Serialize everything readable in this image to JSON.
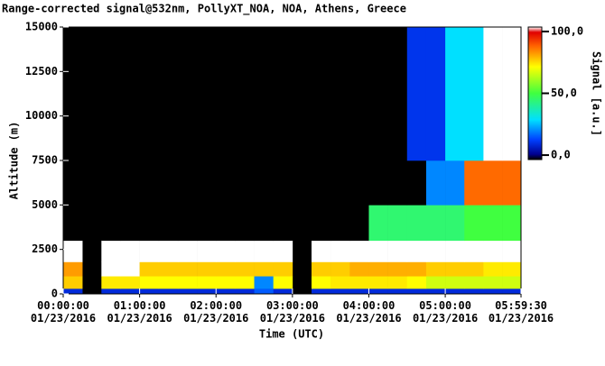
{
  "chart_data": {
    "type": "heatmap",
    "title": "Range-corrected signal@532nm, PollyXT_NOA, NOA, Athens, Greece",
    "xlabel": "Time (UTC)",
    "ylabel": "Altitude (m)",
    "colorbar_label": "Signal [a.u.]",
    "xlim": [
      0,
      5.99167
    ],
    "ylim": [
      0,
      15000
    ],
    "xticks": [
      {
        "value": 0,
        "label": "00:00:00\n01/23/2016"
      },
      {
        "value": 1,
        "label": "01:00:00\n01/23/2016"
      },
      {
        "value": 2,
        "label": "02:00:00\n01/23/2016"
      },
      {
        "value": 3,
        "label": "03:00:00\n01/23/2016"
      },
      {
        "value": 4,
        "label": "04:00:00\n01/23/2016"
      },
      {
        "value": 5,
        "label": "05:00:00\n01/23/2016"
      },
      {
        "value": 5.99167,
        "label": "05:59:30\n01/23/2016"
      }
    ],
    "yticks": [
      0,
      2500,
      5000,
      7500,
      10000,
      12500,
      15000
    ],
    "clim": [
      -3.6,
      103.6
    ],
    "cticks": [
      {
        "value": 0,
        "label": "0,0"
      },
      {
        "value": 50,
        "label": "50,0"
      },
      {
        "value": 100,
        "label": "100,0"
      }
    ],
    "x_edges": [
      0,
      0.25,
      0.5,
      0.75,
      1,
      1.25,
      1.5,
      1.75,
      2,
      2.25,
      2.5,
      2.75,
      3,
      3.25,
      3.5,
      3.75,
      4,
      4.25,
      4.5,
      4.75,
      5,
      5.25,
      5.5,
      5.75,
      5.99167
    ],
    "y_edges": [
      0,
      300,
      1000,
      1800,
      3000,
      5000,
      7500,
      15000
    ],
    "z": [
      [
        8,
        null,
        8,
        8,
        8,
        8,
        8,
        8,
        8,
        8,
        15,
        8,
        null,
        8,
        8,
        8,
        8,
        8,
        8,
        8,
        8,
        8,
        8,
        8
      ],
      [
        75,
        null,
        72,
        72,
        70,
        70,
        70,
        70,
        70,
        70,
        20,
        70,
        null,
        70,
        72,
        72,
        72,
        72,
        70,
        65,
        65,
        65,
        65,
        65
      ],
      [
        80,
        null,
        110,
        110,
        75,
        75,
        75,
        75,
        75,
        75,
        75,
        75,
        null,
        75,
        75,
        78,
        78,
        78,
        78,
        75,
        75,
        75,
        72,
        72
      ],
      [
        110,
        null,
        110,
        110,
        110,
        110,
        110,
        110,
        110,
        110,
        110,
        110,
        null,
        110,
        110,
        110,
        110,
        110,
        110,
        110,
        110,
        110,
        110,
        110
      ],
      [
        -5,
        null,
        -5,
        -5,
        -5,
        -5,
        -5,
        -5,
        -5,
        -5,
        -5,
        -5,
        null,
        -5,
        -5,
        -5,
        45,
        45,
        45,
        45,
        45,
        50,
        50,
        50
      ],
      [
        -5,
        null,
        -5,
        -5,
        -5,
        -5,
        -5,
        -5,
        -5,
        -5,
        -5,
        -5,
        null,
        -5,
        -5,
        -5,
        -5,
        -5,
        -5,
        20,
        20,
        85,
        85,
        85
      ],
      [
        -5,
        null,
        -5,
        -5,
        -5,
        -5,
        -5,
        -5,
        -5,
        -5,
        -5,
        -5,
        null,
        -5,
        -5,
        -5,
        -5,
        -5,
        10,
        10,
        30,
        30,
        110,
        110
      ]
    ]
  }
}
